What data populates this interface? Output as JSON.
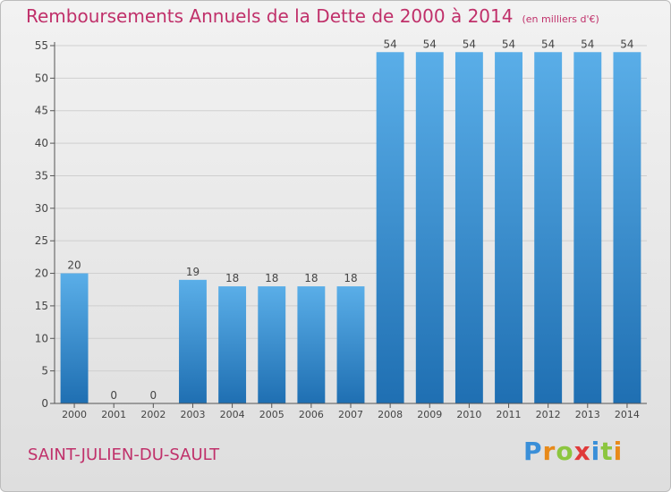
{
  "header": {
    "title": "Remboursements Annuels de la Dette de 2000 à 2014",
    "unit": "(en milliers d'€)"
  },
  "commune": "SAINT-JULIEN-DU-SAULT",
  "logo": {
    "letters": [
      "P",
      "r",
      "o",
      "x",
      "i",
      "t",
      "i"
    ],
    "colors": [
      "#3a8fd8",
      "#e88a1a",
      "#8cc63f",
      "#e03a3a",
      "#3a8fd8",
      "#8cc63f",
      "#e88a1a"
    ]
  },
  "colors": {
    "bar_light": "#5aaee8",
    "bar_dark": "#1f6fb2",
    "grid": "#cfcfcf",
    "axis": "#555555",
    "text": "#444444"
  },
  "chart_data": {
    "type": "bar",
    "categories": [
      "2000",
      "2001",
      "2002",
      "2003",
      "2004",
      "2005",
      "2006",
      "2007",
      "2008",
      "2009",
      "2010",
      "2011",
      "2012",
      "2013",
      "2014"
    ],
    "values": [
      20,
      0,
      0,
      19,
      18,
      18,
      18,
      18,
      54,
      54,
      54,
      54,
      54,
      54,
      54
    ],
    "data_labels": [
      "20",
      "0",
      "0",
      "19",
      "18",
      "18",
      "18",
      "18",
      "54",
      "54",
      "54",
      "54",
      "54",
      "54",
      "54"
    ],
    "yticks": [
      "0",
      "5",
      "10",
      "15",
      "20",
      "25",
      "30",
      "35",
      "40",
      "45",
      "50",
      "55"
    ],
    "ylim": [
      0,
      55
    ],
    "grid": true,
    "title": "Remboursements Annuels de la Dette de 2000 à 2014"
  }
}
